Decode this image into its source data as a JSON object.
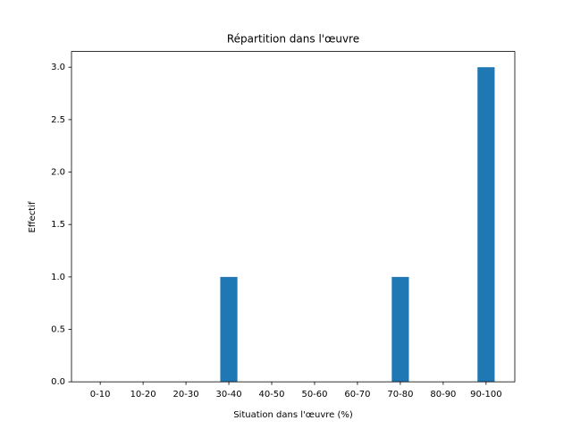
{
  "chart_data": {
    "type": "bar",
    "title": "Répartition dans l'œuvre",
    "xlabel": "Situation dans l'œuvre (%)",
    "ylabel": "Effectif",
    "categories": [
      "0-10",
      "10-20",
      "20-30",
      "30-40",
      "40-50",
      "50-60",
      "60-70",
      "70-80",
      "80-90",
      "90-100"
    ],
    "values": [
      0,
      0,
      0,
      1,
      0,
      0,
      0,
      1,
      0,
      3
    ],
    "color": "#1f77b4",
    "ylim": [
      0,
      3.15
    ],
    "yticks": [
      {
        "value": 0,
        "label": "0.0"
      },
      0.5,
      {
        "value": 1,
        "label": "1.0"
      },
      1.5,
      {
        "value": 2,
        "label": "2.0"
      },
      2.5,
      {
        "value": 3,
        "label": "3.0"
      }
    ],
    "grid": false
  }
}
